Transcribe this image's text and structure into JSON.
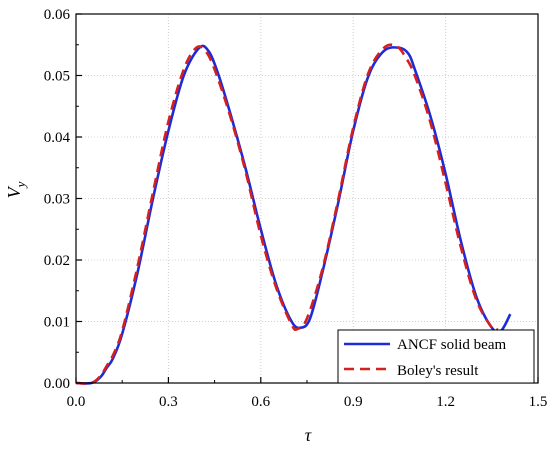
{
  "chart_data": {
    "type": "line",
    "xlabel": "τ",
    "ylabel": "V",
    "ylabel_subscript": "y",
    "xlim": [
      0.0,
      1.5
    ],
    "ylim": [
      0.0,
      0.06
    ],
    "x_ticks": [
      0.0,
      0.3,
      0.6,
      0.9,
      1.2,
      1.5
    ],
    "x_tick_labels": [
      "0.0",
      "0.3",
      "0.6",
      "0.9",
      "1.2",
      "1.5"
    ],
    "y_ticks": [
      0.0,
      0.01,
      0.02,
      0.03,
      0.04,
      0.05,
      0.06
    ],
    "y_tick_labels": [
      "0.00",
      "0.01",
      "0.02",
      "0.03",
      "0.04",
      "0.05",
      "0.06"
    ],
    "grid": "dotted",
    "legend_position": "bottom-right",
    "series": [
      {
        "name": "ANCF solid beam",
        "color": "#1f2bd6",
        "style": "solid",
        "x": [
          0.0,
          0.05,
          0.08,
          0.1,
          0.12,
          0.15,
          0.2,
          0.25,
          0.3,
          0.35,
          0.4,
          0.43,
          0.46,
          0.5,
          0.55,
          0.6,
          0.65,
          0.7,
          0.73,
          0.76,
          0.8,
          0.85,
          0.9,
          0.95,
          1.0,
          1.05,
          1.08,
          1.1,
          1.15,
          1.2,
          1.25,
          1.3,
          1.35,
          1.38,
          1.41
        ],
        "y": [
          0.0,
          0.0,
          0.001,
          0.0025,
          0.004,
          0.008,
          0.018,
          0.03,
          0.041,
          0.05,
          0.0545,
          0.054,
          0.0505,
          0.044,
          0.035,
          0.025,
          0.016,
          0.01,
          0.009,
          0.0105,
          0.018,
          0.029,
          0.041,
          0.05,
          0.054,
          0.0545,
          0.0535,
          0.051,
          0.0435,
          0.034,
          0.023,
          0.014,
          0.009,
          0.0085,
          0.0112
        ]
      },
      {
        "name": "Boley's result",
        "color": "#d42020",
        "style": "dashed",
        "x": [
          0.0,
          0.05,
          0.08,
          0.1,
          0.12,
          0.15,
          0.2,
          0.25,
          0.3,
          0.35,
          0.39,
          0.42,
          0.45,
          0.5,
          0.55,
          0.6,
          0.65,
          0.7,
          0.72,
          0.75,
          0.8,
          0.85,
          0.9,
          0.95,
          1.0,
          1.04,
          1.07,
          1.1,
          1.15,
          1.2,
          1.25,
          1.3,
          1.35,
          1.37
        ],
        "y": [
          0.0,
          0.0,
          0.0012,
          0.0028,
          0.0045,
          0.0085,
          0.019,
          0.031,
          0.0425,
          0.051,
          0.0545,
          0.054,
          0.051,
          0.0435,
          0.0345,
          0.024,
          0.0155,
          0.0095,
          0.0088,
          0.0105,
          0.0185,
          0.0295,
          0.0415,
          0.0505,
          0.0545,
          0.0548,
          0.053,
          0.05,
          0.0425,
          0.0325,
          0.022,
          0.0135,
          0.009,
          0.0087
        ]
      }
    ]
  }
}
